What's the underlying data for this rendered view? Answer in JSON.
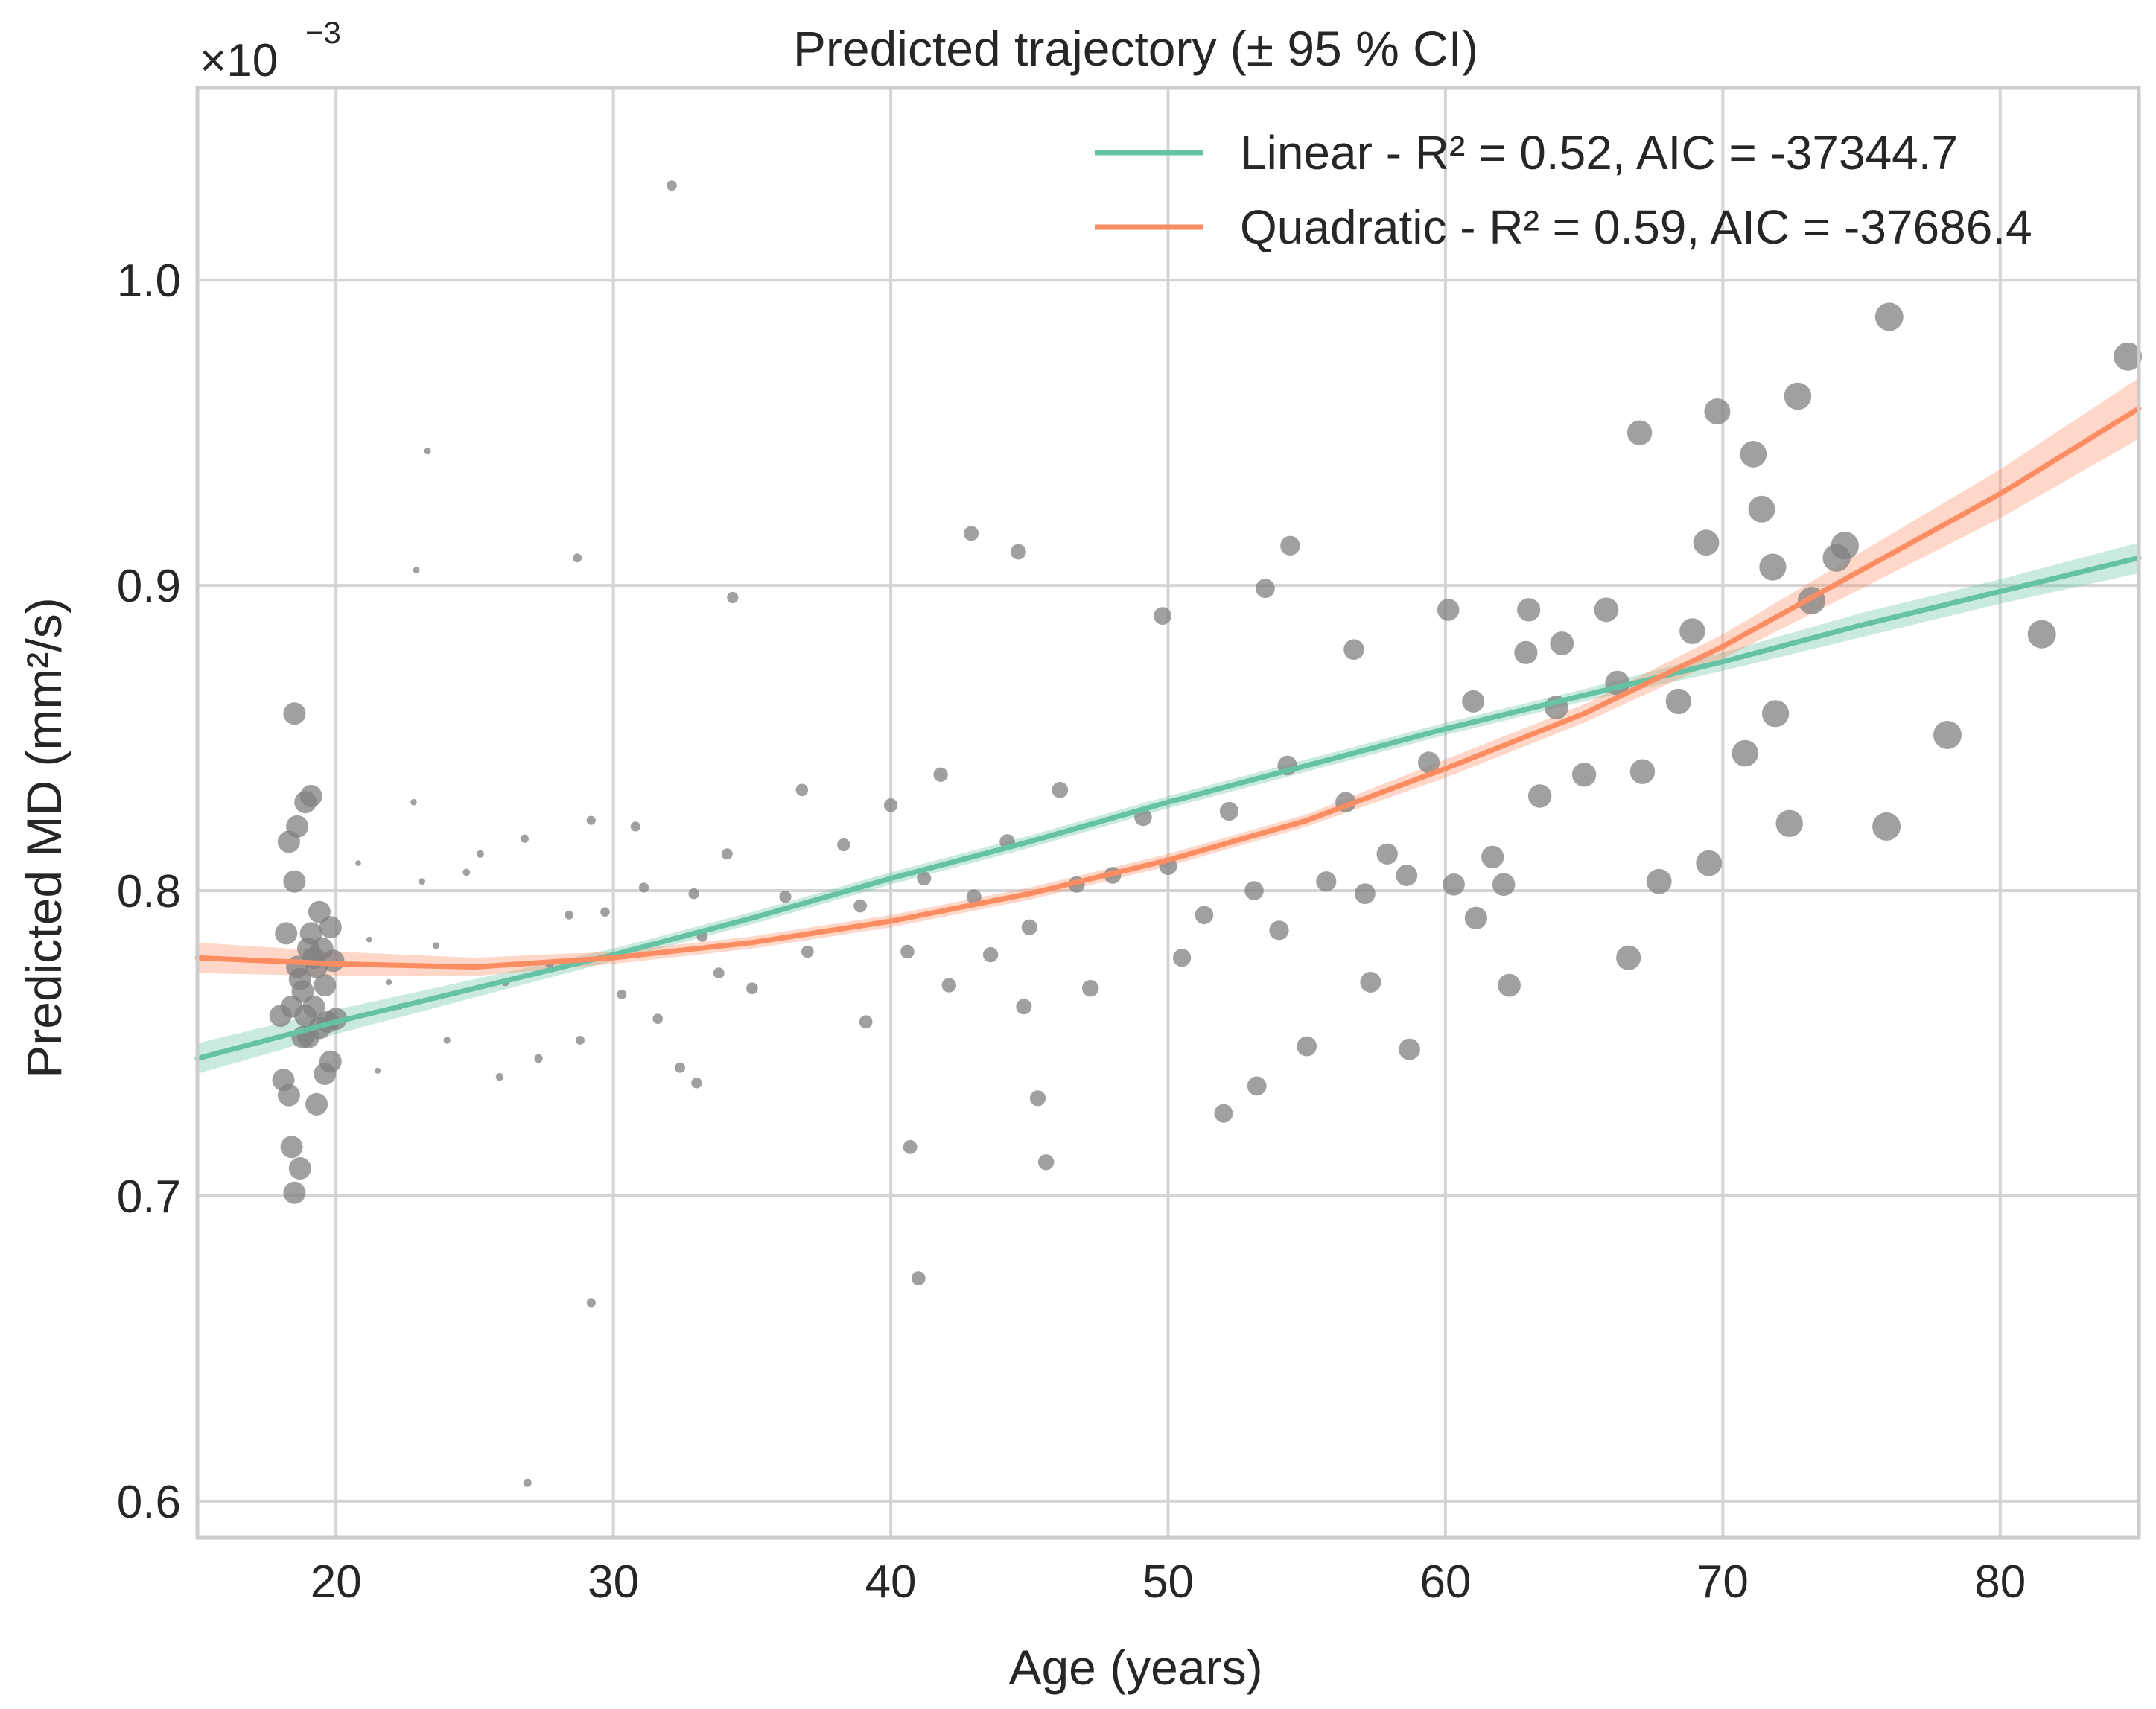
{
  "chart_data": {
    "type": "scatter",
    "title": "Predicted trajectory (± 95 % CI)",
    "xlabel": "Age (years)",
    "ylabel": "Predicted MD (mm²/s)",
    "y_offset_text": "×10",
    "y_offset_exponent": "−3",
    "xlim": [
      15,
      85
    ],
    "ylim": [
      0.588,
      1.063
    ],
    "x_ticks": [
      20,
      30,
      40,
      50,
      60,
      70,
      80
    ],
    "x_tick_labels": [
      "20",
      "30",
      "40",
      "50",
      "60",
      "70",
      "80"
    ],
    "y_ticks": [
      0.6,
      0.7,
      0.8,
      0.9,
      1.0
    ],
    "y_tick_labels": [
      "0.6",
      "0.7",
      "0.8",
      "0.9",
      "1.0"
    ],
    "grid": true,
    "legend_position": "top-right",
    "colors": {
      "linear": "#66c2a5",
      "quadratic": "#fc8d62",
      "points": "#808080",
      "grid": "#d4d4d4",
      "frame": "#cccccc"
    },
    "series": [
      {
        "name": "Linear - R² = 0.52, AIC = -37344.7",
        "kind": "line",
        "color": "#66c2a5",
        "x": [
          15,
          20,
          25,
          30,
          35,
          40,
          45,
          50,
          55,
          60,
          65,
          70,
          75,
          80,
          85
        ],
        "y": [
          0.745,
          0.757,
          0.768,
          0.779,
          0.791,
          0.804,
          0.816,
          0.829,
          0.841,
          0.853,
          0.864,
          0.875,
          0.887,
          0.898,
          0.909
        ],
        "ci": [
          0.005,
          0.004,
          0.003,
          0.002,
          0.002,
          0.002,
          0.002,
          0.002,
          0.002,
          0.002,
          0.002,
          0.003,
          0.004,
          0.004,
          0.005
        ]
      },
      {
        "name": "Quadratic - R² = 0.59, AIC = -37686.4",
        "kind": "line",
        "color": "#fc8d62",
        "x": [
          15,
          20,
          25,
          30,
          35,
          40,
          45,
          50,
          55,
          60,
          65,
          70,
          75,
          80,
          85
        ],
        "y": [
          0.778,
          0.776,
          0.775,
          0.778,
          0.783,
          0.79,
          0.799,
          0.81,
          0.823,
          0.84,
          0.858,
          0.88,
          0.905,
          0.93,
          0.958
        ],
        "ci": [
          0.005,
          0.004,
          0.003,
          0.002,
          0.002,
          0.002,
          0.002,
          0.002,
          0.002,
          0.003,
          0.003,
          0.004,
          0.006,
          0.008,
          0.01
        ]
      },
      {
        "name": "Observations",
        "kind": "scatter",
        "color": "#808080",
        "note_sizes": "marker size grows with age",
        "points": [
          [
            18.0,
            0.759
          ],
          [
            18.1,
            0.738
          ],
          [
            18.2,
            0.786
          ],
          [
            18.3,
            0.816
          ],
          [
            18.3,
            0.733
          ],
          [
            18.4,
            0.762
          ],
          [
            18.4,
            0.716
          ],
          [
            18.5,
            0.803
          ],
          [
            18.5,
            0.701
          ],
          [
            18.5,
            0.858
          ],
          [
            18.6,
            0.775
          ],
          [
            18.6,
            0.821
          ],
          [
            18.7,
            0.771
          ],
          [
            18.7,
            0.709
          ],
          [
            18.8,
            0.767
          ],
          [
            18.9,
            0.759
          ],
          [
            18.9,
            0.829
          ],
          [
            19.0,
            0.781
          ],
          [
            19.0,
            0.752
          ],
          [
            19.1,
            0.786
          ],
          [
            19.1,
            0.831
          ],
          [
            19.2,
            0.762
          ],
          [
            19.3,
            0.775
          ],
          [
            19.3,
            0.73
          ],
          [
            19.4,
            0.793
          ],
          [
            19.4,
            0.755
          ],
          [
            19.5,
            0.781
          ],
          [
            19.6,
            0.74
          ],
          [
            19.6,
            0.769
          ],
          [
            19.7,
            0.757
          ],
          [
            19.8,
            0.788
          ],
          [
            19.8,
            0.744
          ],
          [
            19.9,
            0.777
          ],
          [
            20.0,
            0.758
          ],
          [
            19.2,
            0.778
          ],
          [
            18.8,
            0.752
          ],
          [
            21.2,
            0.784
          ],
          [
            22.3,
            0.762
          ],
          [
            23.1,
            0.803
          ],
          [
            24.0,
            0.751
          ],
          [
            25.2,
            0.812
          ],
          [
            26.1,
            0.77
          ],
          [
            27.3,
            0.745
          ],
          [
            28.4,
            0.792
          ],
          [
            29.2,
            0.823
          ],
          [
            30.3,
            0.766
          ],
          [
            31.1,
            0.801
          ],
          [
            32.4,
            0.742
          ],
          [
            33.2,
            0.785
          ],
          [
            34.1,
            0.812
          ],
          [
            35.0,
            0.768
          ],
          [
            21.5,
            0.741
          ],
          [
            22.8,
            0.829
          ],
          [
            23.6,
            0.782
          ],
          [
            24.7,
            0.806
          ],
          [
            25.9,
            0.739
          ],
          [
            26.8,
            0.817
          ],
          [
            27.7,
            0.776
          ],
          [
            28.8,
            0.751
          ],
          [
            29.7,
            0.793
          ],
          [
            30.8,
            0.821
          ],
          [
            31.6,
            0.758
          ],
          [
            32.9,
            0.799
          ],
          [
            33.8,
            0.773
          ],
          [
            20.8,
            0.809
          ],
          [
            21.9,
            0.77
          ],
          [
            23.3,
            0.944
          ],
          [
            22.9,
            0.905
          ],
          [
            28.7,
            0.909
          ],
          [
            32.1,
            1.031
          ],
          [
            26.9,
            0.606
          ],
          [
            29.2,
            0.665
          ],
          [
            33.0,
            0.737
          ],
          [
            34.3,
            0.896
          ],
          [
            36.2,
            0.798
          ],
          [
            37.0,
            0.78
          ],
          [
            38.3,
            0.815
          ],
          [
            39.1,
            0.757
          ],
          [
            40.0,
            0.828
          ],
          [
            40.6,
            0.78
          ],
          [
            41.2,
            0.804
          ],
          [
            42.1,
            0.769
          ],
          [
            43.0,
            0.798
          ],
          [
            44.2,
            0.816
          ],
          [
            45.0,
            0.788
          ],
          [
            46.1,
            0.833
          ],
          [
            47.2,
            0.768
          ],
          [
            48.0,
            0.805
          ],
          [
            49.1,
            0.824
          ],
          [
            50.0,
            0.808
          ],
          [
            36.8,
            0.833
          ],
          [
            38.9,
            0.795
          ],
          [
            41.8,
            0.838
          ],
          [
            43.6,
            0.779
          ],
          [
            44.8,
            0.762
          ],
          [
            46.7,
            0.802
          ],
          [
            42.9,
            0.917
          ],
          [
            44.6,
            0.911
          ],
          [
            41.0,
            0.673
          ],
          [
            45.6,
            0.711
          ],
          [
            45.3,
            0.732
          ],
          [
            40.7,
            0.716
          ],
          [
            50.5,
            0.778
          ],
          [
            51.3,
            0.792
          ],
          [
            52.2,
            0.826
          ],
          [
            53.1,
            0.8
          ],
          [
            54.3,
            0.841
          ],
          [
            55.0,
            0.749
          ],
          [
            55.7,
            0.803
          ],
          [
            56.4,
            0.829
          ],
          [
            57.1,
            0.799
          ],
          [
            57.9,
            0.812
          ],
          [
            58.7,
            0.748
          ],
          [
            59.4,
            0.842
          ],
          [
            60.1,
            0.892
          ],
          [
            60.3,
            0.802
          ],
          [
            61.1,
            0.791
          ],
          [
            61.7,
            0.811
          ],
          [
            62.3,
            0.769
          ],
          [
            62.9,
            0.878
          ],
          [
            63.4,
            0.831
          ],
          [
            64.2,
            0.881
          ],
          [
            65.0,
            0.838
          ],
          [
            65.8,
            0.892
          ],
          [
            66.6,
            0.778
          ],
          [
            67.0,
            0.95
          ],
          [
            67.1,
            0.839
          ],
          [
            67.7,
            0.803
          ],
          [
            68.4,
            0.862
          ],
          [
            68.9,
            0.885
          ],
          [
            69.4,
            0.914
          ],
          [
            69.8,
            0.957
          ],
          [
            69.5,
            0.809
          ],
          [
            70.8,
            0.845
          ],
          [
            71.1,
            0.943
          ],
          [
            71.4,
            0.925
          ],
          [
            71.8,
            0.906
          ],
          [
            71.9,
            0.858
          ],
          [
            72.4,
            0.822
          ],
          [
            72.7,
            0.962
          ],
          [
            73.2,
            0.895
          ],
          [
            74.1,
            0.909
          ],
          [
            74.4,
            0.913
          ],
          [
            75.9,
            0.821
          ],
          [
            76.0,
            0.988
          ],
          [
            78.1,
            0.851
          ],
          [
            81.5,
            0.884
          ],
          [
            84.6,
            0.975
          ],
          [
            56.7,
            0.879
          ],
          [
            53.5,
            0.899
          ],
          [
            54.4,
            0.913
          ],
          [
            61.0,
            0.862
          ],
          [
            63.0,
            0.892
          ],
          [
            64.0,
            0.86
          ],
          [
            66.2,
            0.868
          ],
          [
            62.1,
            0.802
          ],
          [
            58.6,
            0.805
          ],
          [
            57.3,
            0.77
          ],
          [
            54.0,
            0.787
          ],
          [
            52.0,
            0.727
          ],
          [
            53.2,
            0.736
          ],
          [
            49.8,
            0.89
          ]
        ]
      }
    ]
  }
}
